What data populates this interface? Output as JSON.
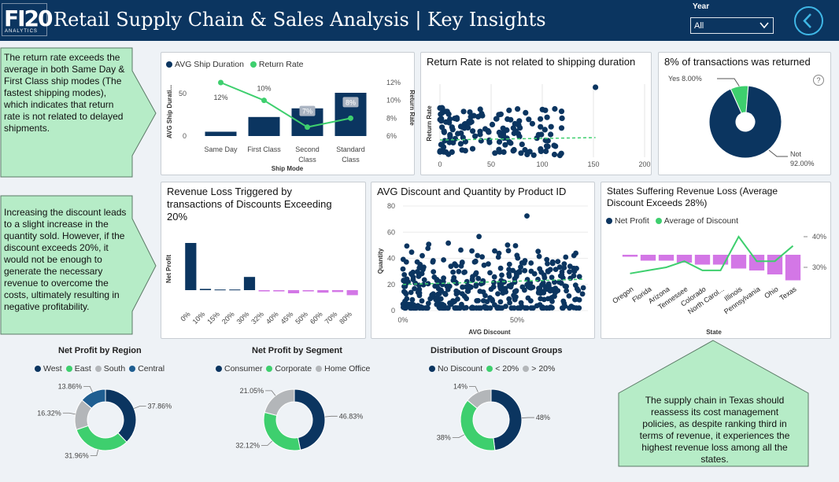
{
  "header": {
    "logo_big": "FI20",
    "logo_small": "ANALYTICS",
    "title": "Retail Supply Chain & Sales Analysis | Key Insights",
    "year_label": "Year",
    "year_value": "All"
  },
  "callouts": [
    "The return rate exceeds the average in both Same Day & First Class ship modes (The fastest shipping modes), which indicates that return rate is not related to delayed shipments.",
    "Increasing the discount leads to a slight increase in the quantity sold. However, if the discount exceeds 20%, it would not be enough to generate the necessary revenue to overcome the costs, ultimately resulting in negative profitability.",
    "The supply chain in Texas should reassess its cost management policies, as despite ranking third in terms of revenue, it experiences the highest revenue loss among all the states."
  ],
  "colors": {
    "navy": "#0b3560",
    "green": "#3ecf6e",
    "gray": "#b3b6b9",
    "pink": "#d377e6",
    "header": "#0b3560",
    "teal_blue": "#1f5e91"
  },
  "chart_data": [
    {
      "id": "ship",
      "type": "bar",
      "legend": [
        "AVG Ship Duration",
        "Return Rate"
      ],
      "categories": [
        "Same Day",
        "First Class",
        "Second Class",
        "Standard Class"
      ],
      "series": [
        {
          "name": "AVG Ship Duration",
          "values": [
            0.5,
            2.2,
            3.2,
            5.0
          ]
        },
        {
          "name": "Return Rate",
          "values": [
            12,
            10,
            7,
            8
          ]
        }
      ],
      "line_labels": [
        "12%",
        "10%",
        "7%",
        "8%"
      ],
      "xlabel": "Ship Mode",
      "ylabel": "AVG Ship Durati...",
      "y2label": "Return Rate",
      "yticks": [
        "0",
        "50"
      ],
      "y2ticks": [
        "12%",
        "10%",
        "8%",
        "6%"
      ]
    },
    {
      "id": "return_scatter",
      "type": "scatter",
      "title": "Return Rate is not related to shipping duration",
      "ylabel": "Return Rate",
      "xticks": [
        "0",
        "50",
        "100",
        "150",
        "200"
      ],
      "xlim": [
        0,
        200
      ]
    },
    {
      "id": "returned_pie",
      "type": "pie",
      "title": "8% of transactions was returned",
      "labels": [
        "Yes",
        "Not"
      ],
      "values": [
        8,
        92
      ],
      "value_labels": [
        "8.00%",
        "92.00%"
      ],
      "help_icon": "?"
    },
    {
      "id": "revenue_loss",
      "type": "bar",
      "title": "Revenue Loss Triggered by transactions of Discounts Exceeding 20%",
      "ylabel": "Net Profit",
      "categories": [
        "0%",
        "10%",
        "15%",
        "20%",
        "30%",
        "32%",
        "40%",
        "45%",
        "50%",
        "60%",
        "70%",
        "80%"
      ],
      "values": [
        75,
        2,
        1,
        1,
        21,
        -2,
        -2,
        -5,
        -2,
        -4,
        -3,
        -8
      ]
    },
    {
      "id": "discount_scatter",
      "type": "scatter",
      "title": "AVG Discount and Quantity by Product ID",
      "xlabel": "AVG Discount",
      "ylabel": "Quantity",
      "xticks": [
        "0%",
        "50%"
      ],
      "yticks": [
        "0",
        "20",
        "40",
        "60",
        "80"
      ],
      "ylim": [
        0,
        80
      ]
    },
    {
      "id": "states",
      "type": "bar",
      "title": "States Suffering Revenue Loss (Average Discount Exceeds 28%)",
      "legend": [
        "Net Profit",
        "Average of Discount"
      ],
      "categories": [
        "Oregon",
        "Florida",
        "Arizona",
        "Tennessee",
        "Colorado",
        "North Carol...",
        "Illinois",
        "Pennsylvania",
        "Ohio",
        "Texas"
      ],
      "series": [
        {
          "name": "Net Profit",
          "values": [
            -1,
            -3,
            -3,
            -4,
            -5,
            -5,
            -7,
            -8,
            -10,
            -13
          ]
        },
        {
          "name": "Average of Discount",
          "values": [
            28,
            29,
            30,
            32,
            29,
            29,
            40,
            32,
            32,
            37
          ]
        }
      ],
      "xlabel": "State",
      "y2ticks": [
        "40%",
        "30%"
      ]
    },
    {
      "id": "region",
      "type": "pie",
      "title": "Net Profit by Region",
      "labels": [
        "West",
        "East",
        "South",
        "Central"
      ],
      "values": [
        37.86,
        31.96,
        16.32,
        13.86
      ],
      "value_labels": [
        "37.86%",
        "31.96%",
        "16.32%",
        "13.86%"
      ]
    },
    {
      "id": "segment",
      "type": "pie",
      "title": "Net Profit by Segment",
      "labels": [
        "Consumer",
        "Corporate",
        "Home Office"
      ],
      "values": [
        46.83,
        32.12,
        21.05
      ],
      "value_labels": [
        "46.83%",
        "32.12%",
        "21.05%"
      ]
    },
    {
      "id": "discount_groups",
      "type": "pie",
      "title": "Distribution of Discount Groups",
      "labels": [
        "No Discount",
        "< 20%",
        "> 20%"
      ],
      "values": [
        48,
        38,
        14
      ],
      "value_labels": [
        "48%",
        "38%",
        "14%"
      ]
    }
  ]
}
